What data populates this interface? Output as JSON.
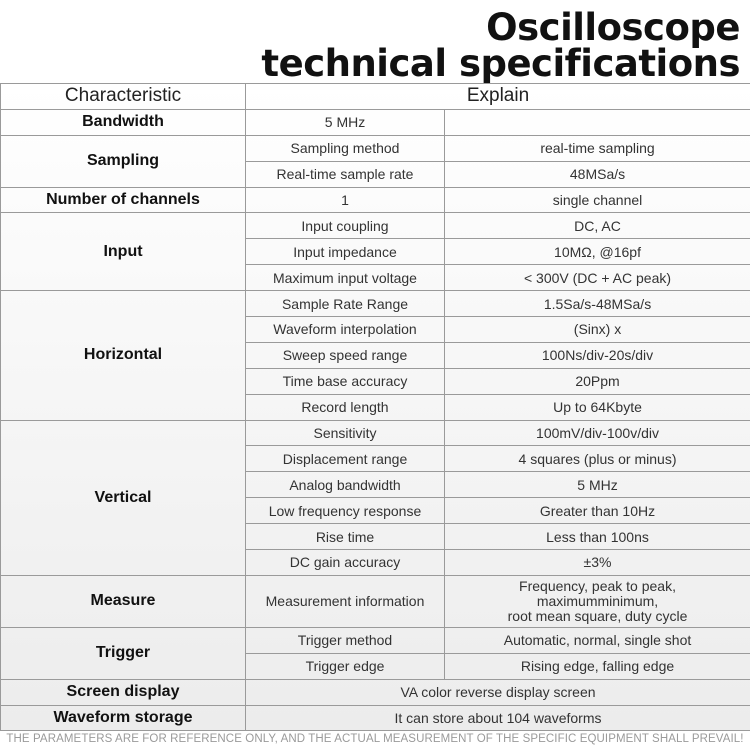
{
  "title": {
    "line1": "Oscilloscope",
    "line2": "technical specifications"
  },
  "table": {
    "headers": {
      "characteristic": "Characteristic",
      "explain": "Explain"
    },
    "bandwidth": {
      "label": "Bandwidth",
      "value": "5 MHz"
    },
    "sampling": {
      "label": "Sampling",
      "rows": [
        {
          "name": "Sampling method",
          "value": "real-time sampling"
        },
        {
          "name": "Real-time sample rate",
          "value": "48MSa/s"
        }
      ]
    },
    "channels": {
      "label": "Number of channels",
      "count": "1",
      "value": "single channel"
    },
    "input": {
      "label": "Input",
      "rows": [
        {
          "name": "Input coupling",
          "value": "DC, AC"
        },
        {
          "name": "Input impedance",
          "value": "10MΩ, @16pf"
        },
        {
          "name": "Maximum input voltage",
          "value": "< 300V (DC + AC peak)"
        }
      ]
    },
    "horizontal": {
      "label": "Horizontal",
      "rows": [
        {
          "name": "Sample Rate Range",
          "value": "1.5Sa/s-48MSa/s"
        },
        {
          "name": "Waveform interpolation",
          "value": "(Sinx) x"
        },
        {
          "name": "Sweep speed range",
          "value": "100Ns/div-20s/div"
        },
        {
          "name": "Time base accuracy",
          "value": "20Ppm"
        },
        {
          "name": "Record length",
          "value": "Up to 64Kbyte"
        }
      ]
    },
    "vertical": {
      "label": "Vertical",
      "rows": [
        {
          "name": "Sensitivity",
          "value": "100mV/div-100v/div"
        },
        {
          "name": "Displacement range",
          "value": "4 squares (plus or minus)"
        },
        {
          "name": "Analog bandwidth",
          "value": "5 MHz"
        },
        {
          "name": "Low frequency response",
          "value": "Greater than 10Hz"
        },
        {
          "name": "Rise time",
          "value": "Less than 100ns"
        },
        {
          "name": "DC gain accuracy",
          "value": "±3%"
        }
      ]
    },
    "measure": {
      "label": "Measure",
      "name": "Measurement information",
      "value_lines": [
        "Frequency, peak to peak,",
        "maximumminimum,",
        "root mean square, duty cycle"
      ]
    },
    "trigger": {
      "label": "Trigger",
      "rows": [
        {
          "name": "Trigger method",
          "value": "Automatic, normal, single shot"
        },
        {
          "name": "Trigger edge",
          "value": "Rising edge, falling edge"
        }
      ]
    },
    "screen": {
      "label": "Screen display",
      "value": "VA color reverse display screen"
    },
    "storage": {
      "label": "Waveform storage",
      "value": "It can store about 104 waveforms"
    }
  },
  "footer": "THE PARAMETERS ARE FOR REFERENCE ONLY, AND THE ACTUAL MEASUREMENT OF THE SPECIFIC EQUIPMENT SHALL PREVAIL!"
}
